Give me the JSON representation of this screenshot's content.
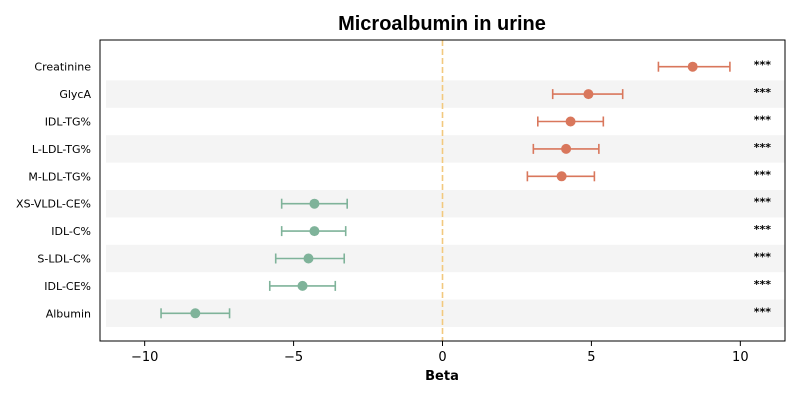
{
  "chart_data": {
    "type": "scatter",
    "title": "Microalbumin in urine",
    "xlabel": "Beta",
    "ylabel": "",
    "xlim": [
      -11.5,
      11.5
    ],
    "xticks": [
      -10,
      -5,
      0,
      5,
      10
    ],
    "xtick_labels": [
      "−10",
      "−5",
      "0",
      "5",
      "10"
    ],
    "reference_line": 0,
    "grid": false,
    "row_banding": true,
    "colors": {
      "positive": "#d9775c",
      "negative": "#7fb39a",
      "reference": "#f2c97e",
      "band": "#f4f4f4"
    },
    "rows": [
      {
        "label": "Creatinine",
        "beta": 8.4,
        "lower": 7.25,
        "upper": 9.65,
        "significance": "***"
      },
      {
        "label": "GlycA",
        "beta": 4.9,
        "lower": 3.7,
        "upper": 6.05,
        "significance": "***"
      },
      {
        "label": "IDL-TG%",
        "beta": 4.3,
        "lower": 3.2,
        "upper": 5.4,
        "significance": "***"
      },
      {
        "label": "L-LDL-TG%",
        "beta": 4.15,
        "lower": 3.05,
        "upper": 5.25,
        "significance": "***"
      },
      {
        "label": "M-LDL-TG%",
        "beta": 4.0,
        "lower": 2.85,
        "upper": 5.1,
        "significance": "***"
      },
      {
        "label": "XS-VLDL-CE%",
        "beta": -4.3,
        "lower": -5.4,
        "upper": -3.2,
        "significance": "***"
      },
      {
        "label": "IDL-C%",
        "beta": -4.3,
        "lower": -5.4,
        "upper": -3.25,
        "significance": "***"
      },
      {
        "label": "S-LDL-C%",
        "beta": -4.5,
        "lower": -5.6,
        "upper": -3.3,
        "significance": "***"
      },
      {
        "label": "IDL-CE%",
        "beta": -4.7,
        "lower": -5.8,
        "upper": -3.6,
        "significance": "***"
      },
      {
        "label": "Albumin",
        "beta": -8.3,
        "lower": -9.45,
        "upper": -7.15,
        "significance": "***"
      }
    ]
  }
}
